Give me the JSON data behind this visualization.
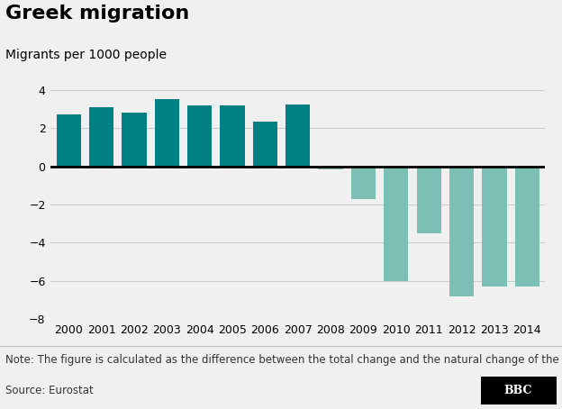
{
  "title": "Greek migration",
  "ylabel": "Migrants per 1000 people",
  "categories": [
    "2000",
    "2001",
    "2002",
    "2003",
    "2004",
    "2005",
    "2006",
    "2007",
    "2008",
    "2009",
    "2010",
    "2011",
    "2012",
    "2013",
    "2014"
  ],
  "values": [
    2.7,
    3.1,
    2.8,
    3.5,
    3.2,
    3.2,
    2.35,
    3.25,
    -0.15,
    -1.7,
    -6.0,
    -3.5,
    -6.8,
    -6.3,
    -6.3
  ],
  "bar_colors_pos": "#008080",
  "bar_colors_neg": "#7BBFB5",
  "ylim": [
    -8,
    4
  ],
  "yticks": [
    -8,
    -6,
    -4,
    -2,
    0,
    2,
    4
  ],
  "note": "Note: The figure is calculated as the difference between the total change and the natural change of the population",
  "source": "Source: Eurostat",
  "background_color": "#f0f0f0",
  "grid_color": "#cccccc",
  "title_fontsize": 16,
  "label_fontsize": 10,
  "tick_fontsize": 9,
  "note_fontsize": 8.5
}
